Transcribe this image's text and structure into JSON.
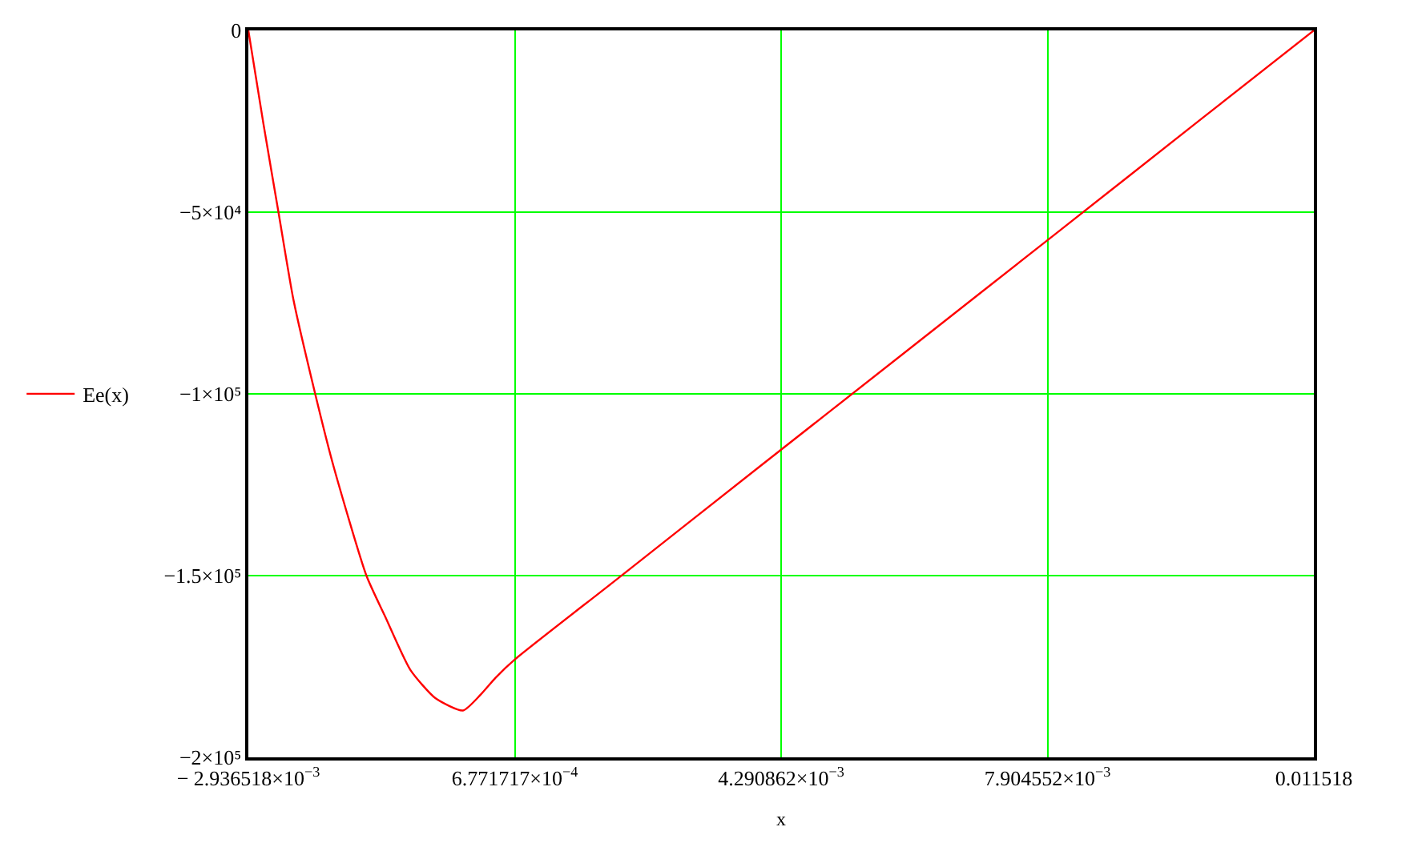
{
  "chart_data": {
    "type": "line",
    "xlabel": "x",
    "legend": "left",
    "grid": true,
    "marker": "none",
    "line_style": "solid",
    "xlim": [
      -0.002936518,
      0.011518
    ],
    "ylim": [
      -200000,
      0
    ],
    "xticks": [
      {
        "value": -0.002936518,
        "label": "− 2.936518×10$^{−3}$"
      },
      {
        "value": 0.0006771717,
        "label": "6.771717×10$^{−4}$"
      },
      {
        "value": 0.004290862,
        "label": "4.290862×10$^{−3}$"
      },
      {
        "value": 0.007904552,
        "label": "7.904552×10$^{−3}$"
      },
      {
        "value": 0.011518,
        "label": "0.011518"
      }
    ],
    "yticks": [
      {
        "value": -200000,
        "label": "−2×10⁵"
      },
      {
        "value": -150000,
        "label": "−1.5×10⁵"
      },
      {
        "value": -100000,
        "label": "−1×10⁵"
      },
      {
        "value": -50000,
        "label": "−5×10⁴"
      },
      0
    ],
    "series": [
      {
        "name": "Ee(x)",
        "color": "#ff0000",
        "x": [
          -0.002936518,
          -0.002732,
          -0.002528,
          -0.002324,
          -0.00203,
          -0.00178,
          -0.001335,
          -0.00108,
          -0.00074,
          -0.0004,
          -2.5e-05,
          0.000212,
          0.000417,
          0.000689,
          0.002,
          0.004,
          0.006,
          0.008,
          0.01,
          0.011518
        ],
        "values": [
          0,
          -25700,
          -50000,
          -74200,
          -100000,
          -120000,
          -150000,
          -161300,
          -175900,
          -183700,
          -187100,
          -182800,
          -178100,
          -172900,
          -152000,
          -120000,
          -88100,
          -56200,
          -24200,
          0
        ]
      }
    ]
  }
}
